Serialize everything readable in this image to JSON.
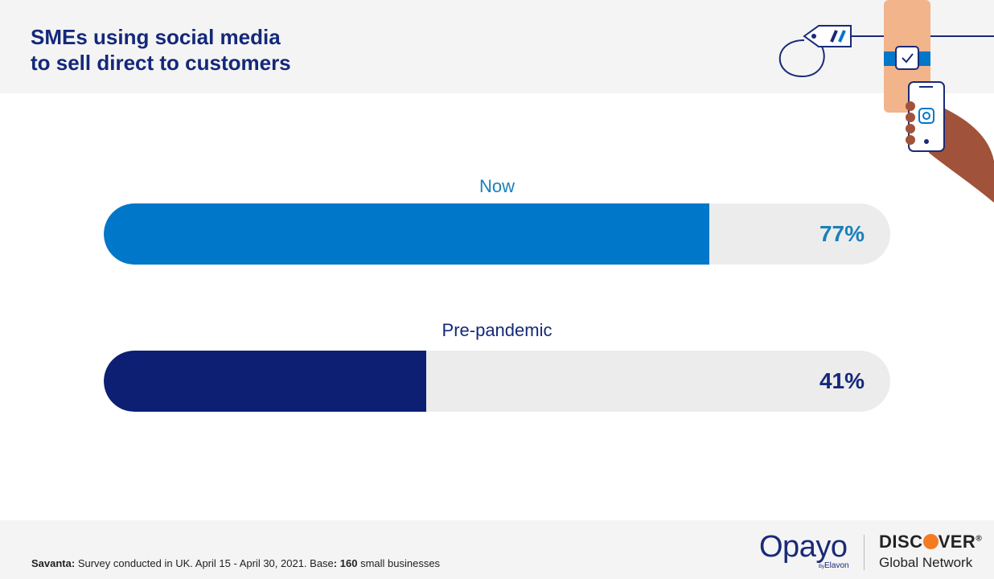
{
  "title": {
    "line1": "SMEs using social media",
    "line2": "to sell direct to customers"
  },
  "chart_data": {
    "type": "bar",
    "orientation": "horizontal",
    "categories": [
      "Now",
      "Pre-pandemic"
    ],
    "values": [
      77,
      41
    ],
    "value_labels": [
      "77%",
      "41%"
    ],
    "ylim": [
      0,
      100
    ],
    "colors": [
      "#0077c8",
      "#0d1f73"
    ],
    "label_colors": [
      "#1a80b8",
      "#14287a"
    ],
    "value_colors": [
      "#1a80b8",
      "#14287a"
    ],
    "track_color": "#ececec"
  },
  "footer": {
    "source_bold": "Savanta:",
    "source_text": " Survey conducted in UK. April 15 - April 30, 2021. Base",
    "base_colon": ":",
    "base_value": "160",
    "base_suffix": " small businesses"
  },
  "logos": {
    "opayo": "Opayo",
    "by": "By",
    "elavon": "Elavon",
    "discover_pre": "DISC",
    "discover_post": "VER",
    "discover_reg": "®",
    "global_network": "Global Network"
  },
  "illustration": {
    "tag_icon": "price-tag-icon",
    "watch_icon": "smartwatch-icon",
    "phone_icon": "smartphone-icon",
    "instagram_icon": "instagram-icon"
  }
}
